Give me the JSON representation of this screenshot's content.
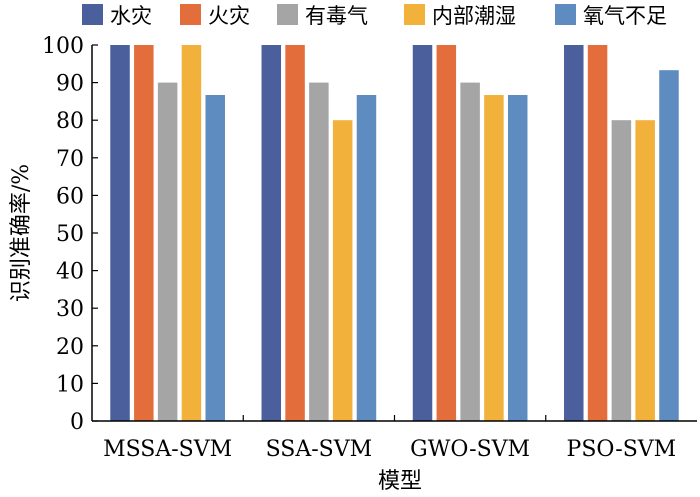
{
  "chart_data": {
    "type": "bar",
    "title": "",
    "xlabel": "模型",
    "ylabel": "识别准确率/%",
    "ylim": [
      0,
      100
    ],
    "yticks": [
      0,
      10,
      20,
      30,
      40,
      50,
      60,
      70,
      80,
      90,
      100
    ],
    "grid": false,
    "legend_position": "top",
    "categories": [
      "MSSA-SVM",
      "SSA-SVM",
      "GWO-SVM",
      "PSO-SVM"
    ],
    "series": [
      {
        "name": "水灾",
        "color": "#4a5f9b",
        "values": [
          100,
          100,
          100,
          100
        ]
      },
      {
        "name": "火灾",
        "color": "#e36e3c",
        "values": [
          100,
          100,
          100,
          100
        ]
      },
      {
        "name": "有毒气",
        "color": "#a5a5a5",
        "values": [
          90,
          90,
          90,
          80
        ]
      },
      {
        "name": "内部潮湿",
        "color": "#f2b13a",
        "values": [
          100,
          80,
          86.7,
          80
        ]
      },
      {
        "name": "氧气不足",
        "color": "#5e8cc0",
        "values": [
          86.7,
          86.7,
          86.7,
          93.3
        ]
      }
    ]
  }
}
